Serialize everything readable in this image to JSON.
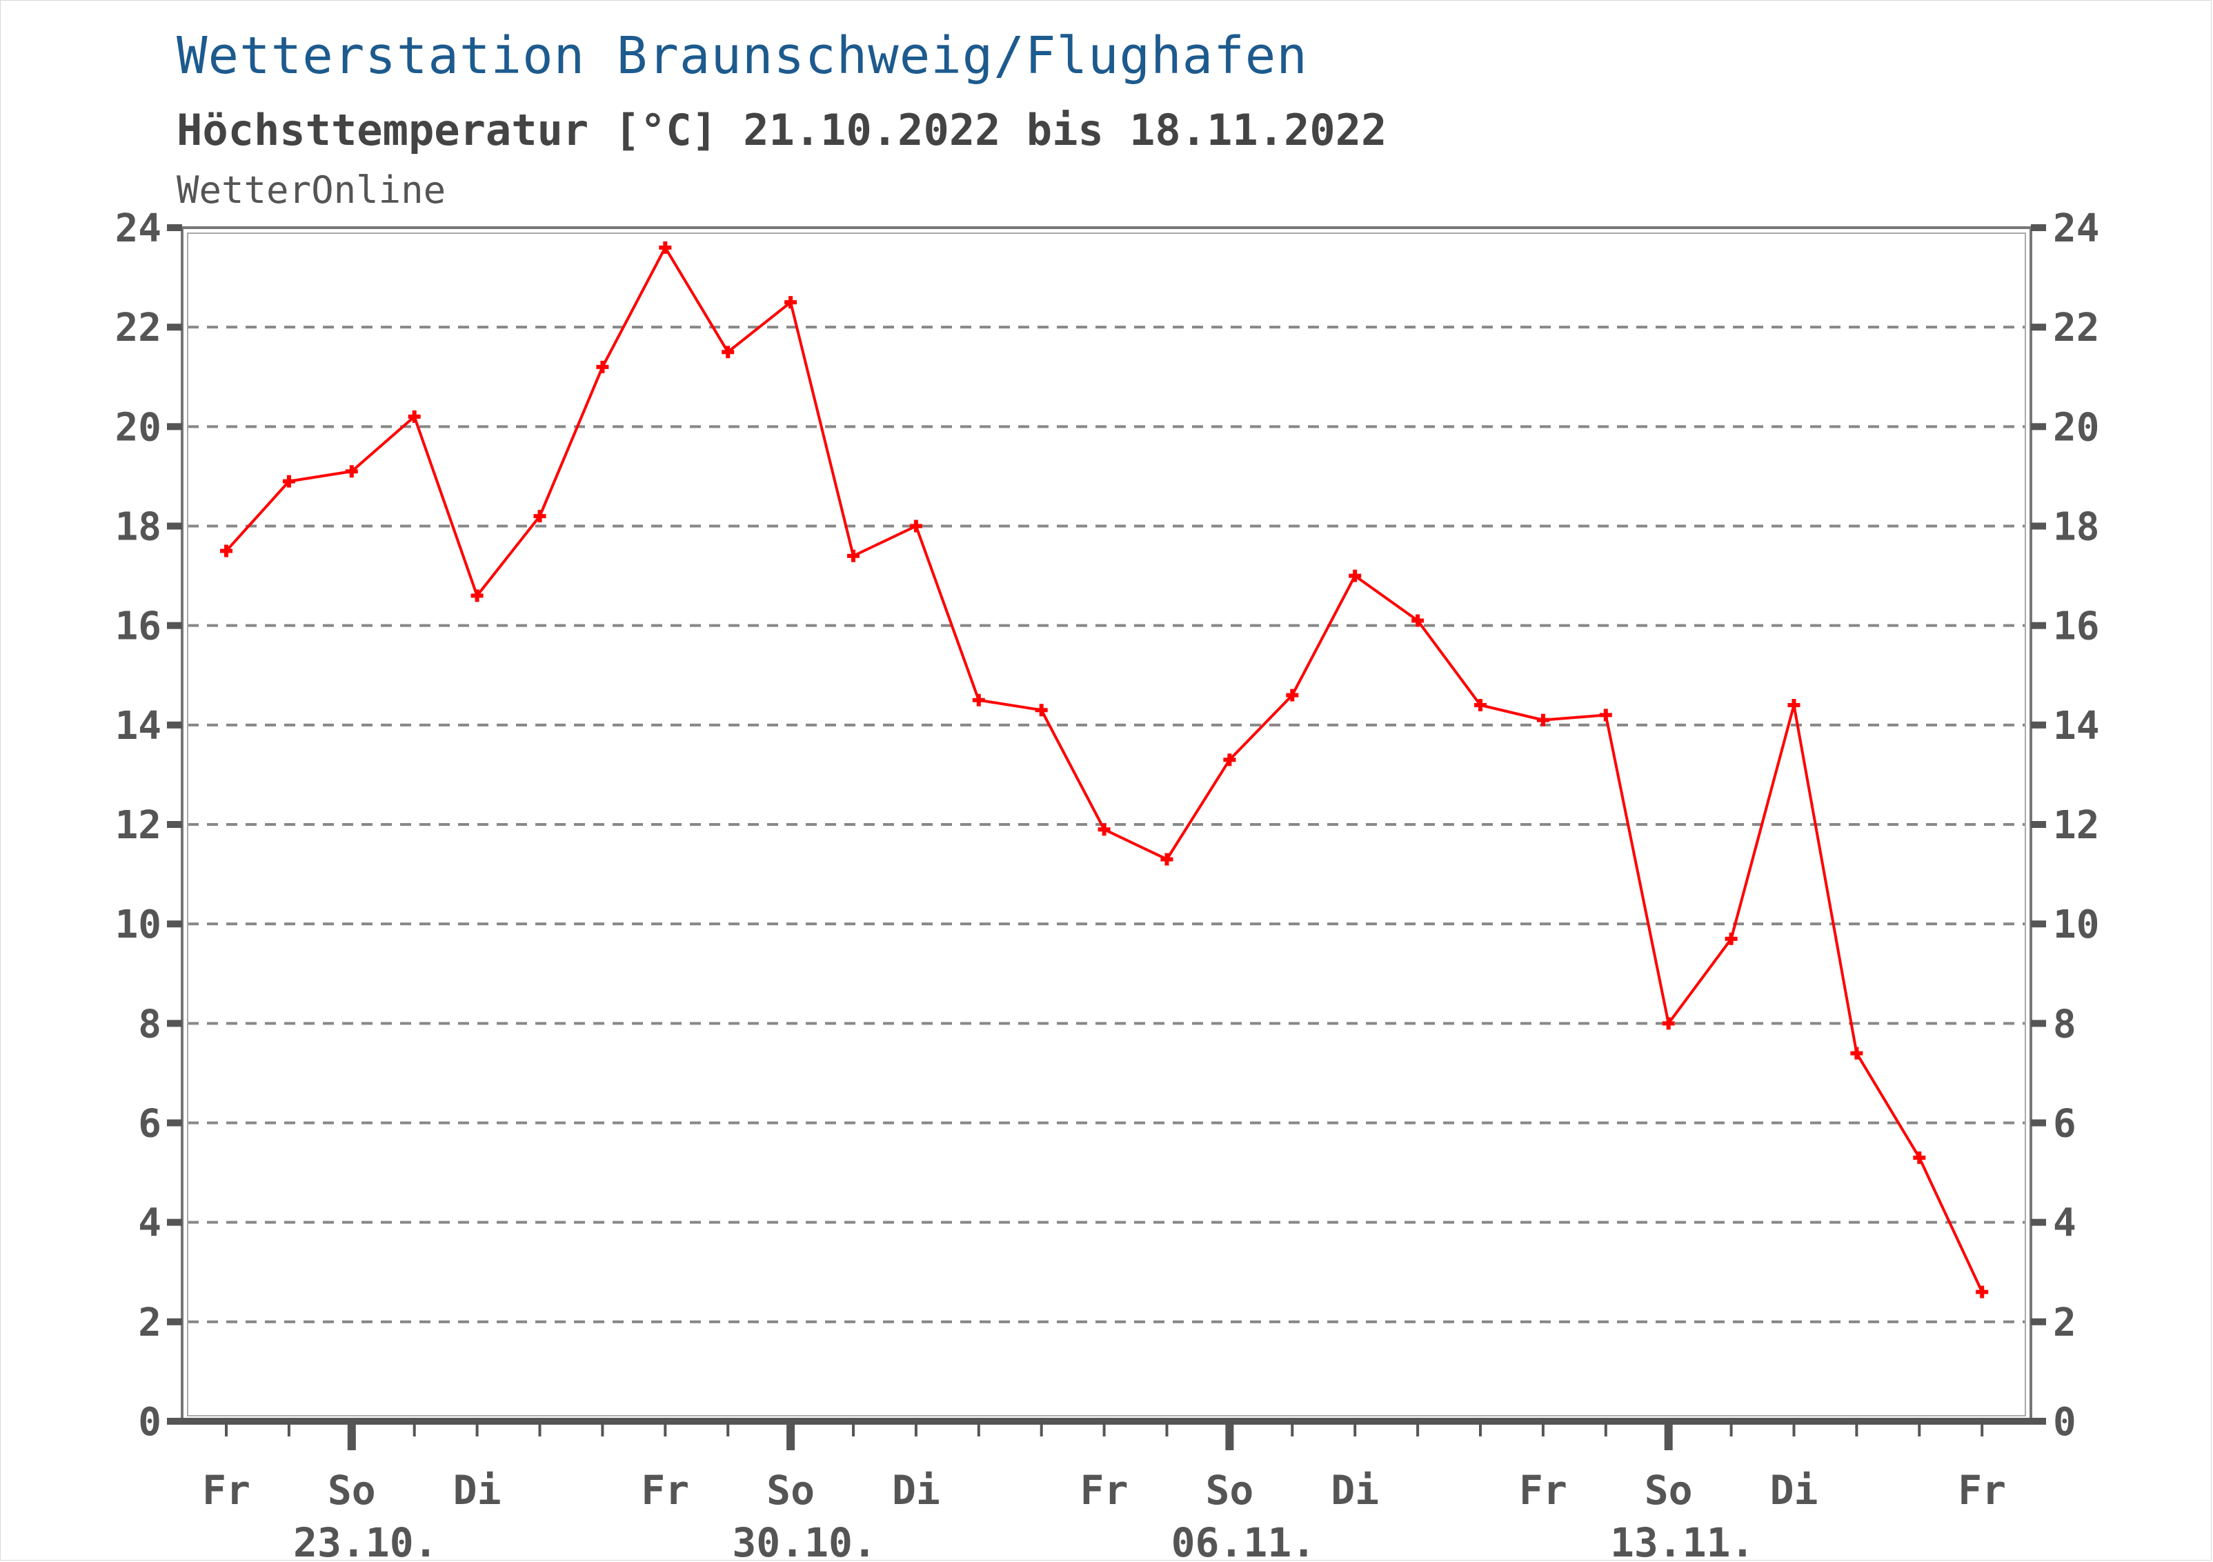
{
  "title": "Wetterstation Braunschweig/Flughafen",
  "subtitle": "Höchsttemperatur [°C] 21.10.2022 bis 18.11.2022",
  "source": "WetterOnline",
  "colors": {
    "title": "#1d5a8e",
    "axis": "#555555",
    "grid": "#888888",
    "series": "#ff0000"
  },
  "chart_data": {
    "type": "line",
    "title": "Wetterstation Braunschweig/Flughafen",
    "subtitle": "Höchsttemperatur [°C] 21.10.2022 bis 18.11.2022",
    "ylim": [
      0,
      24
    ],
    "yticks": [
      0,
      2,
      4,
      6,
      8,
      10,
      12,
      14,
      16,
      18,
      20,
      22,
      24
    ],
    "grid": true,
    "legend": "none",
    "x_start": "2022-10-21",
    "x_end": "2022-11-18",
    "day_labels": [
      {
        "date": "2022-10-21",
        "label": "Fr"
      },
      {
        "date": "2022-10-23",
        "label": "So"
      },
      {
        "date": "2022-10-25",
        "label": "Di"
      },
      {
        "date": "2022-10-28",
        "label": "Fr"
      },
      {
        "date": "2022-10-30",
        "label": "So"
      },
      {
        "date": "2022-11-01",
        "label": "Di"
      },
      {
        "date": "2022-11-04",
        "label": "Fr"
      },
      {
        "date": "2022-11-06",
        "label": "So"
      },
      {
        "date": "2022-11-08",
        "label": "Di"
      },
      {
        "date": "2022-11-11",
        "label": "Fr"
      },
      {
        "date": "2022-11-13",
        "label": "So"
      },
      {
        "date": "2022-11-15",
        "label": "Di"
      },
      {
        "date": "2022-11-18",
        "label": "Fr"
      }
    ],
    "date_labels": [
      {
        "date": "2022-10-23",
        "label": "23.10."
      },
      {
        "date": "2022-10-30",
        "label": "30.10."
      },
      {
        "date": "2022-11-06",
        "label": "06.11."
      },
      {
        "date": "2022-11-13",
        "label": "13.11."
      }
    ],
    "series": [
      {
        "x": [
          "2022-10-21",
          "2022-10-22",
          "2022-10-23",
          "2022-10-24",
          "2022-10-25",
          "2022-10-26",
          "2022-10-27",
          "2022-10-28",
          "2022-10-29",
          "2022-10-30",
          "2022-10-31",
          "2022-11-01",
          "2022-11-02",
          "2022-11-03",
          "2022-11-04",
          "2022-11-05",
          "2022-11-06",
          "2022-11-07",
          "2022-11-08",
          "2022-11-09",
          "2022-11-10",
          "2022-11-11",
          "2022-11-12",
          "2022-11-13",
          "2022-11-14",
          "2022-11-15",
          "2022-11-16",
          "2022-11-17",
          "2022-11-18"
        ],
        "values": [
          17.5,
          18.9,
          19.1,
          20.2,
          16.6,
          18.2,
          21.2,
          23.6,
          21.5,
          22.5,
          17.4,
          18.0,
          14.5,
          14.3,
          11.9,
          11.3,
          13.3,
          14.6,
          17.0,
          16.1,
          14.4,
          14.1,
          14.2,
          8.0,
          9.7,
          14.4,
          7.4,
          5.3,
          2.6
        ]
      }
    ]
  }
}
